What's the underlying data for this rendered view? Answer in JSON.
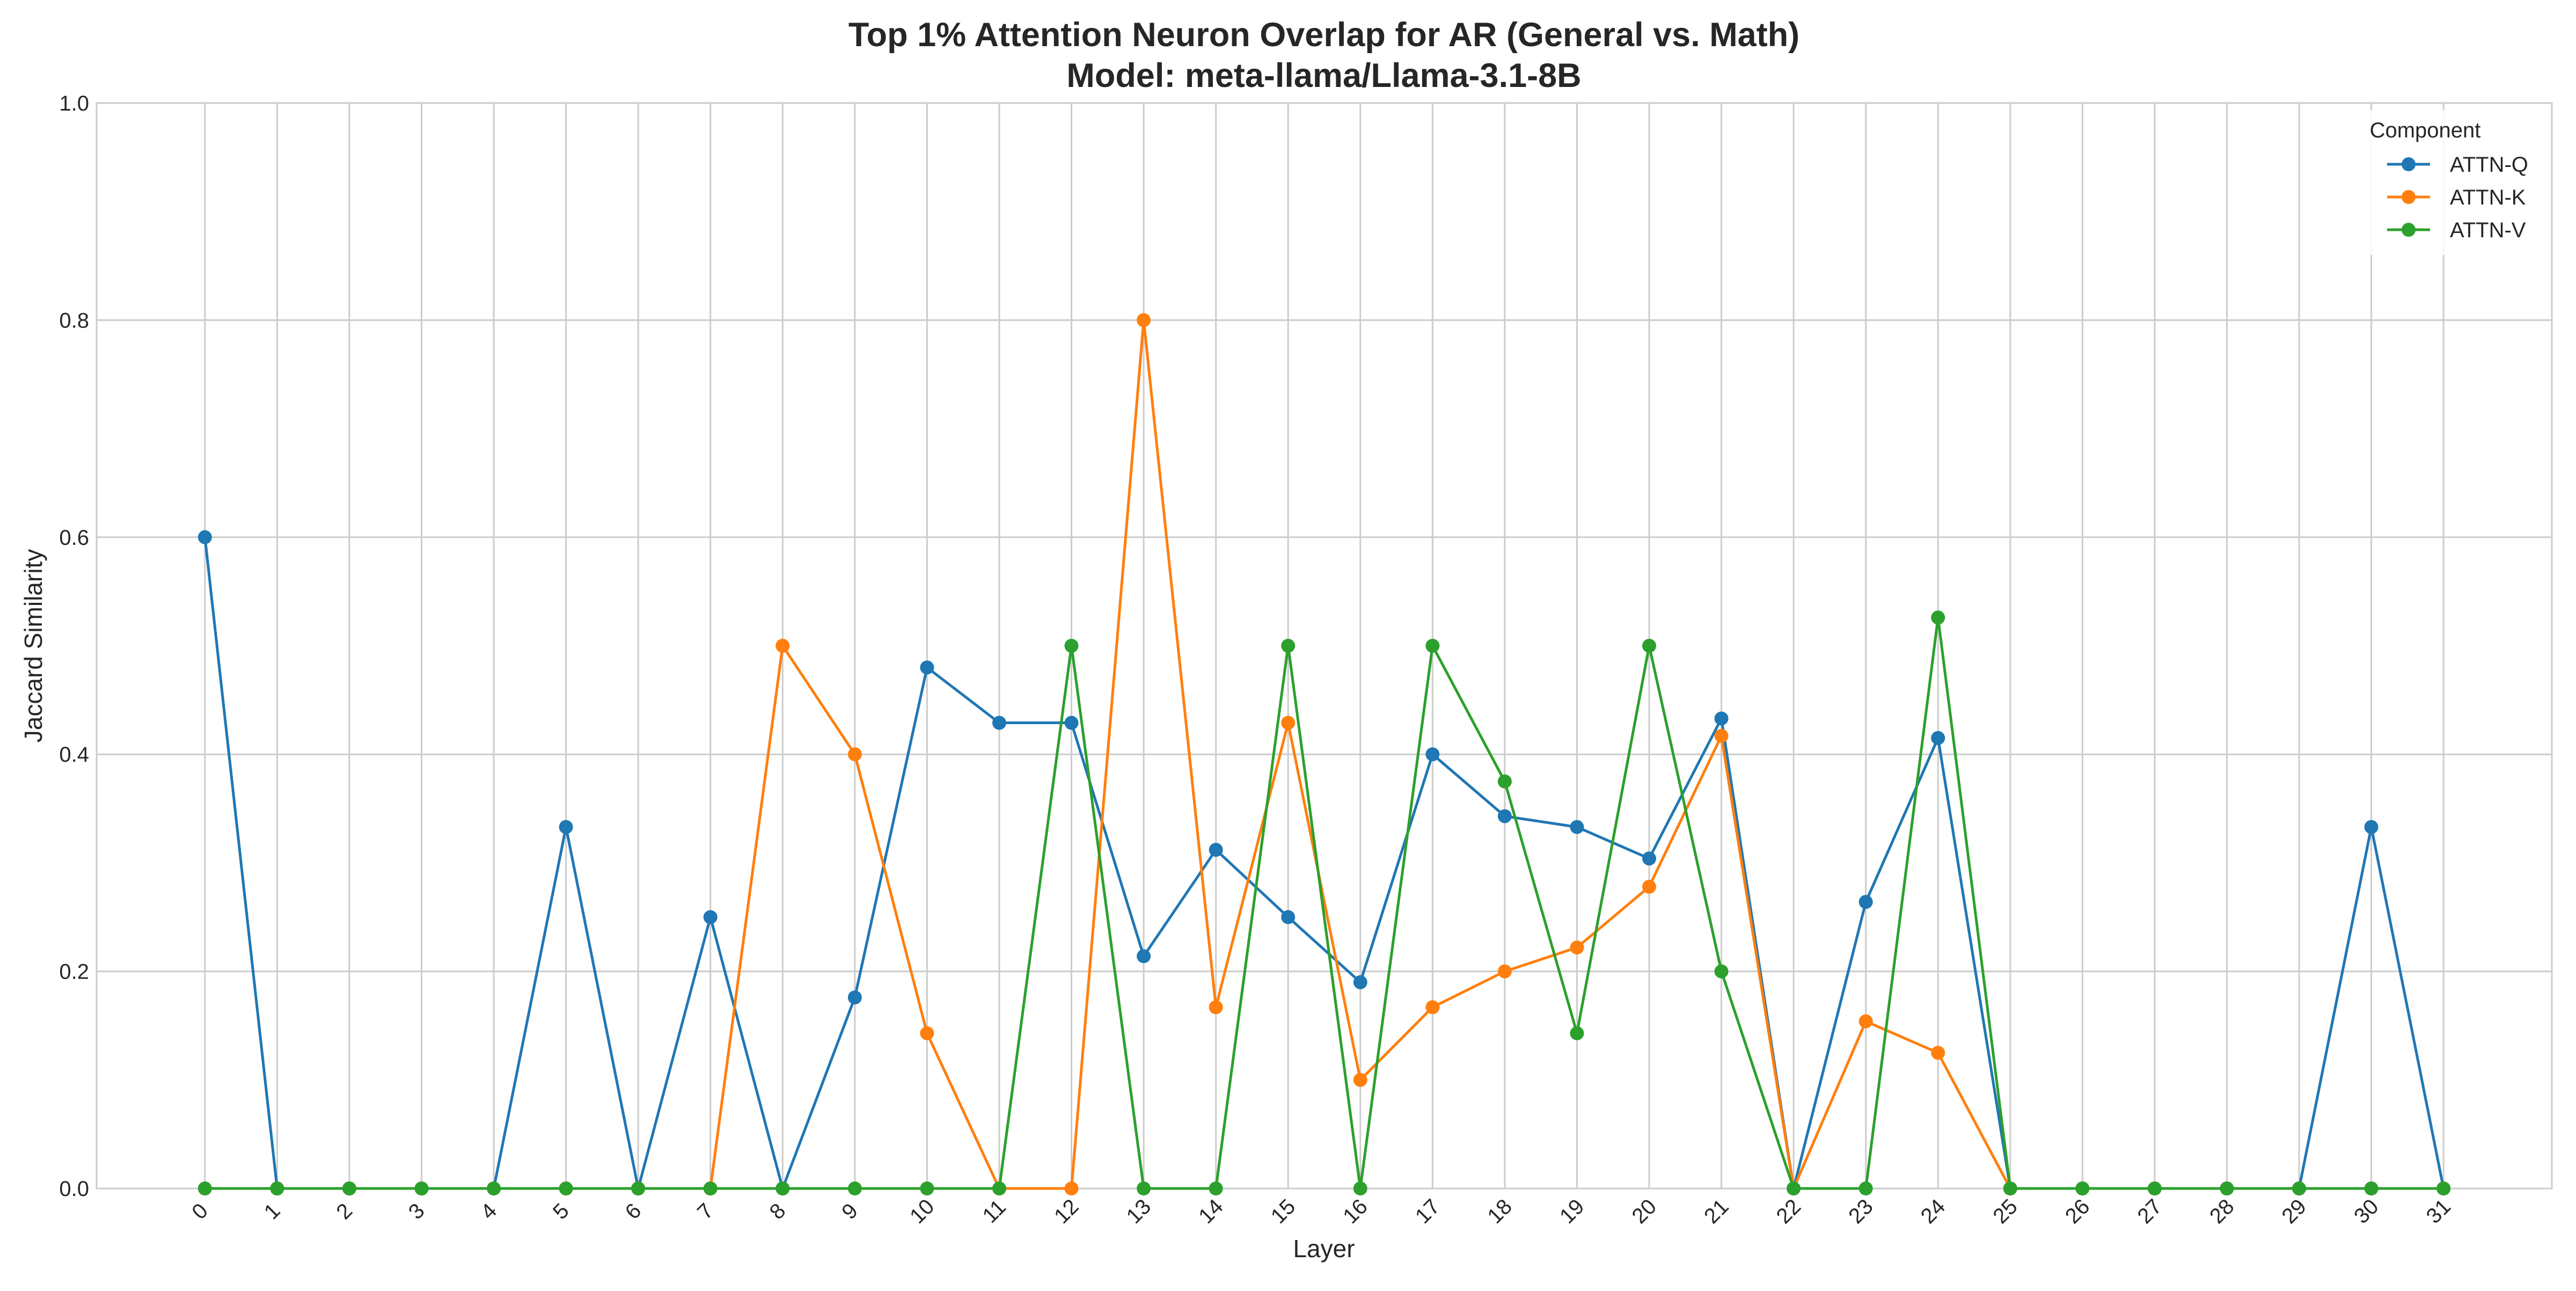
{
  "chart_data": {
    "type": "line",
    "title": "Top 1% Attention Neuron Overlap for AR (General vs. Math)",
    "subtitle": "Model: meta-llama/Llama-3.1-8B",
    "xlabel": "Layer",
    "ylabel": "Jaccard Similarity",
    "x": [
      0,
      1,
      2,
      3,
      4,
      5,
      6,
      7,
      8,
      9,
      10,
      11,
      12,
      13,
      14,
      15,
      16,
      17,
      18,
      19,
      20,
      21,
      22,
      23,
      24,
      25,
      26,
      27,
      28,
      29,
      30,
      31
    ],
    "xlim": [
      -1.5,
      32.5
    ],
    "ylim": [
      0,
      1.0
    ],
    "yticks": [
      0.0,
      0.2,
      0.4,
      0.6,
      0.8,
      1.0
    ],
    "ytick_labels": [
      "0.0",
      "0.2",
      "0.4",
      "0.6",
      "0.8",
      "1.0"
    ],
    "grid": true,
    "legend": {
      "title": "Component",
      "position": "top-right"
    },
    "series": [
      {
        "name": "ATTN-Q",
        "color": "#1f77b4",
        "values": [
          0.6,
          0,
          0,
          0,
          0,
          0.333,
          0,
          0.25,
          0,
          0.176,
          0.48,
          0.429,
          0.429,
          0.214,
          0.312,
          0.25,
          0.19,
          0.4,
          0.343,
          0.333,
          0.304,
          0.433,
          0,
          0.264,
          0.415,
          0,
          0,
          0,
          0,
          0,
          0.333,
          0
        ]
      },
      {
        "name": "ATTN-K",
        "color": "#ff7f0e",
        "values": [
          0,
          0,
          0,
          0,
          0,
          0,
          0,
          0,
          0.5,
          0.4,
          0.143,
          0,
          0,
          0.8,
          0.167,
          0.429,
          0.1,
          0.167,
          0.2,
          0.222,
          0.278,
          0.417,
          0,
          0.154,
          0.125,
          0,
          0,
          0,
          0,
          0,
          0,
          0
        ]
      },
      {
        "name": "ATTN-V",
        "color": "#2ca02c",
        "values": [
          0,
          0,
          0,
          0,
          0,
          0,
          0,
          0,
          0,
          0,
          0,
          0,
          0.5,
          0,
          0,
          0.5,
          0,
          0.5,
          0.375,
          0.143,
          0.5,
          0.2,
          0,
          0,
          0.526,
          0,
          0,
          0,
          0,
          0,
          0,
          0
        ]
      }
    ]
  }
}
